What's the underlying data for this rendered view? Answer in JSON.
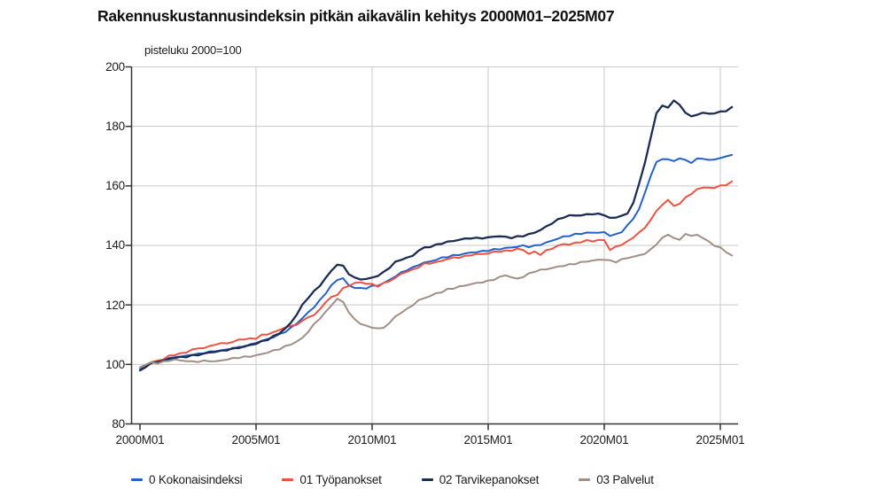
{
  "chart": {
    "title": "Rakennuskustannusindeksin pitkän aikavälin kehitys 2000M01–2025M07",
    "unit_label": "pisteluku 2000=100"
  },
  "chart_data": {
    "type": "line",
    "title": "Rakennuskustannusindeksin pitkän aikavälin kehitys 2000M01–2025M07",
    "subtitle": "pisteluku 2000=100",
    "xlabel": "",
    "ylabel": "pisteluku 2000=100",
    "ylim": [
      80,
      200
    ],
    "xlim": [
      2000,
      2025.75
    ],
    "grid": true,
    "legend_position": "bottom",
    "yticks": [
      200,
      180,
      160,
      140,
      120,
      100,
      80
    ],
    "ytick_labels": [
      "200",
      "180",
      "160",
      "140",
      "120",
      "100",
      "80"
    ],
    "xtick_years": [
      2000,
      2005,
      2010,
      2015,
      2020,
      2025
    ],
    "xtick_labels": [
      "2000M01",
      "2005M01",
      "2010M01",
      "2015M01",
      "2020M01",
      "2025M01"
    ],
    "colors": {
      "axis": "#333333",
      "gridline": "#c9c9c9",
      "text": "#1c1c1c"
    },
    "x": [
      2000,
      2000.25,
      2000.5,
      2000.75,
      2001,
      2001.25,
      2001.5,
      2001.75,
      2002,
      2002.25,
      2002.5,
      2002.75,
      2003,
      2003.25,
      2003.5,
      2003.75,
      2004,
      2004.25,
      2004.5,
      2004.75,
      2005,
      2005.25,
      2005.5,
      2005.75,
      2006,
      2006.25,
      2006.5,
      2006.75,
      2007,
      2007.25,
      2007.5,
      2007.75,
      2008,
      2008.25,
      2008.5,
      2008.75,
      2009,
      2009.25,
      2009.5,
      2009.75,
      2010,
      2010.25,
      2010.5,
      2010.75,
      2011,
      2011.25,
      2011.5,
      2011.75,
      2012,
      2012.25,
      2012.5,
      2012.75,
      2013,
      2013.25,
      2013.5,
      2013.75,
      2014,
      2014.25,
      2014.5,
      2014.75,
      2015,
      2015.25,
      2015.5,
      2015.75,
      2016,
      2016.25,
      2016.5,
      2016.75,
      2017,
      2017.25,
      2017.5,
      2017.75,
      2018,
      2018.25,
      2018.5,
      2018.75,
      2019,
      2019.25,
      2019.5,
      2019.75,
      2020,
      2020.25,
      2020.5,
      2020.75,
      2021,
      2021.25,
      2021.5,
      2021.75,
      2022,
      2022.25,
      2022.5,
      2022.75,
      2023,
      2023.25,
      2023.5,
      2023.75,
      2024,
      2024.25,
      2024.5,
      2024.75,
      2025,
      2025.25,
      2025.5
    ],
    "series": [
      {
        "name": "0 Kokonaisindeksi",
        "color": "#2361c9",
        "values": [
          98.3,
          99.5,
          100.6,
          101,
          101.4,
          102,
          102.5,
          102.6,
          102.9,
          103.3,
          103.5,
          103.9,
          104.2,
          104.5,
          104.7,
          105,
          105.4,
          105.7,
          106.1,
          106.6,
          107.3,
          107.9,
          108.5,
          109.2,
          110,
          111,
          112.2,
          113.8,
          115.5,
          117.5,
          119.3,
          121.5,
          124,
          126.5,
          128.5,
          128.9,
          126.5,
          125.8,
          125.5,
          125.7,
          126.3,
          126.6,
          127.3,
          128.4,
          129.6,
          130.8,
          131.8,
          132.5,
          133.5,
          134.2,
          134.6,
          135.2,
          135.8,
          136.2,
          136.6,
          136.9,
          137.2,
          137.6,
          137.8,
          138,
          138.3,
          138.6,
          138.8,
          139.1,
          139.3,
          139.6,
          139.9,
          139.6,
          139.8,
          140.3,
          140.9,
          141.6,
          142.3,
          142.9,
          143.3,
          143.7,
          144,
          144.2,
          144.3,
          144.3,
          144.3,
          143.4,
          143.6,
          144.6,
          146.7,
          149,
          152.3,
          157.5,
          163.5,
          167.8,
          169.2,
          168.8,
          168.4,
          169.3,
          168.6,
          167.9,
          169,
          169.3,
          168.6,
          168.9,
          169.4,
          169.8,
          170.4
        ]
      },
      {
        "name": "01 Työpanokset",
        "color": "#eb5340",
        "values": [
          99,
          100,
          100.8,
          101.2,
          101.8,
          102.8,
          103.3,
          103.6,
          104.1,
          105,
          105.3,
          105.6,
          106,
          106.8,
          107,
          107.2,
          107.5,
          108.3,
          108.5,
          108.6,
          108.8,
          109.8,
          110.2,
          110.8,
          111.5,
          112.5,
          112.8,
          113.5,
          114.5,
          116,
          116.5,
          118.5,
          121,
          122.5,
          123.5,
          125.5,
          126.5,
          127.3,
          127.6,
          127.2,
          126.9,
          126.3,
          127.2,
          128.1,
          129,
          130.5,
          131.2,
          131.8,
          132.7,
          133.8,
          134,
          134.3,
          134.8,
          135.5,
          135.8,
          136,
          136.3,
          136.8,
          137,
          137.1,
          137.3,
          137.8,
          138,
          138.1,
          138.3,
          138.8,
          138.5,
          137.2,
          137.8,
          137,
          138.2,
          139,
          139.8,
          140.5,
          140.3,
          140.8,
          141.2,
          141.6,
          141.5,
          141.7,
          141.8,
          138.5,
          139.5,
          140.3,
          141.2,
          142.8,
          144.2,
          146,
          148.6,
          151.5,
          153.8,
          155.1,
          153.5,
          153.8,
          156.2,
          157.3,
          158.8,
          159.6,
          159.2,
          159.5,
          160,
          160.3,
          161.5
        ]
      },
      {
        "name": "02 Tarvikepanokset",
        "color": "#1d2d52",
        "values": [
          98,
          99.3,
          100.4,
          100.9,
          101.2,
          101.8,
          102.3,
          102.4,
          102.6,
          103,
          103.2,
          103.6,
          104,
          104.3,
          104.5,
          104.9,
          105.3,
          105.6,
          106,
          106.5,
          107,
          107.7,
          108.4,
          109.4,
          110.5,
          112,
          114,
          116.8,
          120,
          122.5,
          124.5,
          126.5,
          129,
          131.5,
          133.6,
          133,
          130.5,
          129,
          128.7,
          128.6,
          129.2,
          129.8,
          131,
          132.6,
          134.3,
          135.3,
          135.8,
          136.5,
          138.3,
          139.2,
          139.6,
          140.1,
          140.7,
          141.2,
          141.5,
          141.9,
          142.2,
          142.5,
          142.4,
          142.5,
          142.6,
          143,
          143.1,
          142.8,
          142.6,
          142.9,
          143.2,
          143.7,
          144.3,
          145.2,
          146.3,
          147.5,
          148.6,
          149.5,
          150,
          150.1,
          150.1,
          150.4,
          150.6,
          150.5,
          150.3,
          149.1,
          149.4,
          150,
          150.6,
          154.5,
          160.5,
          168,
          176,
          184.5,
          187,
          186.2,
          188.9,
          187,
          184.8,
          183.2,
          184,
          184.6,
          184.2,
          184.5,
          184.8,
          185.3,
          186.5
        ]
      },
      {
        "name": "03 Palvelut",
        "color": "#a18f85",
        "values": [
          99,
          100,
          100.6,
          100.5,
          100.8,
          101.3,
          101.6,
          101.3,
          101.2,
          100.9,
          101,
          101.1,
          101.2,
          101,
          101.3,
          101.7,
          102,
          102.3,
          102.5,
          102.7,
          103,
          103.5,
          104,
          104.6,
          105.2,
          106,
          106.8,
          107.6,
          109,
          111,
          113.5,
          115.5,
          117.5,
          120,
          122,
          121,
          117.5,
          115,
          113.8,
          112.8,
          112.5,
          112,
          112.3,
          114,
          116,
          117.5,
          118.5,
          120,
          121.5,
          122.3,
          123,
          123.8,
          124.4,
          125.2,
          125.6,
          126.1,
          126.5,
          127,
          127.3,
          127.7,
          128,
          128.6,
          129.3,
          130,
          129.3,
          128.7,
          129.5,
          130.4,
          131.3,
          131.7,
          132,
          132.4,
          132.8,
          133.2,
          133.5,
          133.9,
          134.3,
          134.6,
          134.9,
          135.1,
          135.3,
          134.8,
          134.5,
          135.2,
          135.8,
          136.2,
          136.6,
          137.3,
          138.5,
          140.5,
          142.4,
          143.7,
          142.5,
          141.8,
          144,
          143,
          143.8,
          142.3,
          141.5,
          139.8,
          139.3,
          137.9,
          136.6
        ]
      }
    ]
  }
}
